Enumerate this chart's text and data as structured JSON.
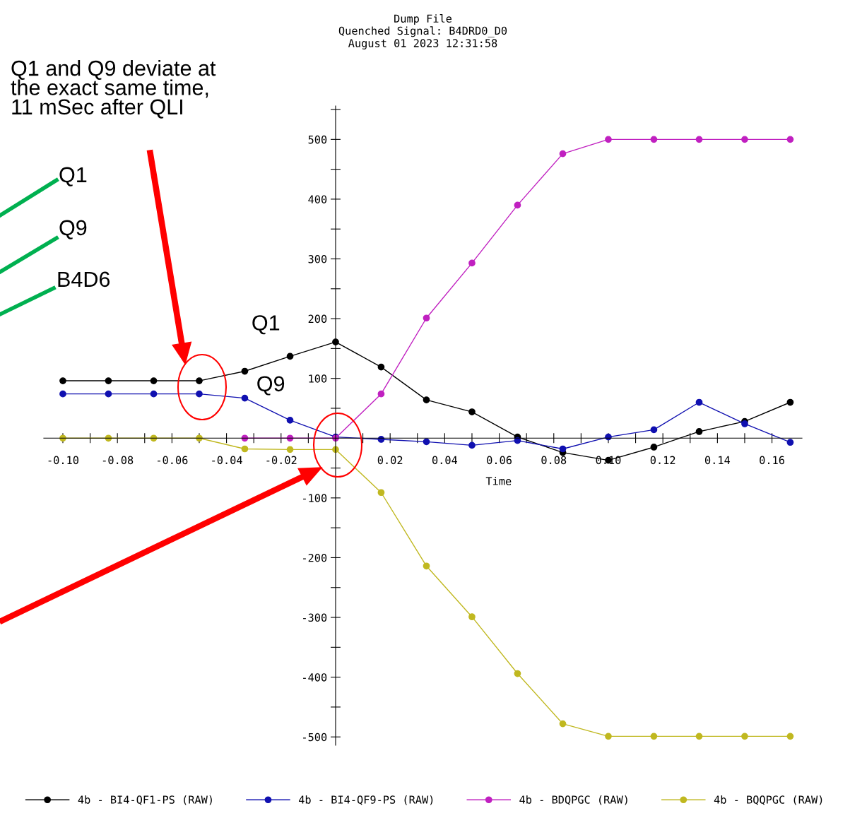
{
  "chart_data": {
    "type": "line",
    "title": "Dump File\nQuenched Signal: B4DRD0_D0\nAugust 01 2023 12:31:58",
    "xlabel": "Time",
    "x": [
      -0.1,
      -0.0833,
      -0.0667,
      -0.05,
      -0.0333,
      -0.0167,
      0,
      0.0167,
      0.0333,
      0.05,
      0.0667,
      0.0833,
      0.1,
      0.1167,
      0.1333,
      0.15,
      0.1667
    ],
    "series": [
      {
        "name": "4b - BI4-QF1-PS (RAW)",
        "color": "#000000",
        "values": [
          96,
          96,
          96,
          96,
          112,
          137,
          161,
          119,
          64,
          44,
          2,
          -24,
          -37,
          -15,
          11,
          28,
          60
        ]
      },
      {
        "name": "4b - BI4-QF9-PS (RAW)",
        "color": "#1010b0",
        "values": [
          74,
          74,
          74,
          74,
          67,
          30,
          2,
          -2,
          -6,
          -12,
          -4,
          -18,
          2,
          14,
          60,
          24,
          -7
        ]
      },
      {
        "name": "4b - BDQPGC (RAW)",
        "color": "#c020c0",
        "values": [
          null,
          null,
          null,
          null,
          0,
          0,
          0,
          74,
          201,
          293,
          390,
          476,
          500,
          500,
          500,
          500,
          500
        ]
      },
      {
        "name": "4b - BQQPGC (RAW)",
        "color": "#c0b820",
        "values": [
          0,
          0,
          0,
          0,
          -18,
          -19,
          -19,
          -91,
          -214,
          -299,
          -394,
          -478,
          -499,
          -499,
          -499,
          -499,
          -499
        ]
      }
    ],
    "xlim": [
      -0.107,
      0.171
    ],
    "ylim": [
      -514,
      556
    ],
    "xticks": [
      {
        "value": -0.1,
        "label": "-0.10"
      },
      {
        "value": -0.09,
        "label": null
      },
      {
        "value": -0.08,
        "label": "-0.08"
      },
      {
        "value": -0.07,
        "label": null
      },
      {
        "value": -0.06,
        "label": "-0.06"
      },
      {
        "value": -0.05,
        "label": null
      },
      {
        "value": -0.04,
        "label": "-0.04"
      },
      {
        "value": -0.03,
        "label": null
      },
      {
        "value": -0.02,
        "label": "-0.02"
      },
      {
        "value": -0.01,
        "label": null
      },
      {
        "value": 0.01,
        "label": null
      },
      {
        "value": 0.02,
        "label": "0.02"
      },
      {
        "value": 0.03,
        "label": null
      },
      {
        "value": 0.04,
        "label": "0.04"
      },
      {
        "value": 0.05,
        "label": null
      },
      {
        "value": 0.06,
        "label": "0.06"
      },
      {
        "value": 0.07,
        "label": null
      },
      {
        "value": 0.08,
        "label": "0.08"
      },
      {
        "value": 0.09,
        "label": null
      },
      {
        "value": 0.1,
        "label": "0.10"
      },
      {
        "value": 0.11,
        "label": null
      },
      {
        "value": 0.12,
        "label": "0.12"
      },
      {
        "value": 0.13,
        "label": null
      },
      {
        "value": 0.14,
        "label": "0.14"
      },
      {
        "value": 0.15,
        "label": null
      },
      {
        "value": 0.16,
        "label": "0.16"
      }
    ],
    "yticks": [
      {
        "value": -500,
        "label": "-500"
      },
      {
        "value": -450,
        "label": null
      },
      {
        "value": -400,
        "label": "-400"
      },
      {
        "value": -350,
        "label": null
      },
      {
        "value": -300,
        "label": "-300"
      },
      {
        "value": -250,
        "label": null
      },
      {
        "value": -200,
        "label": "-200"
      },
      {
        "value": -150,
        "label": null
      },
      {
        "value": -100,
        "label": "-100"
      },
      {
        "value": -50,
        "label": null
      },
      {
        "value": 50,
        "label": null
      },
      {
        "value": 100,
        "label": "100"
      },
      {
        "value": 150,
        "label": null
      },
      {
        "value": 200,
        "label": "200"
      },
      {
        "value": 250,
        "label": null
      },
      {
        "value": 300,
        "label": "300"
      },
      {
        "value": 350,
        "label": null
      },
      {
        "value": 400,
        "label": "400"
      },
      {
        "value": 450,
        "label": null
      },
      {
        "value": 500,
        "label": "500"
      },
      {
        "value": 550,
        "label": null
      }
    ],
    "marker": "circle",
    "line_style": "solid",
    "grid": false,
    "legend": "bottom",
    "annotations": [
      "Q1 and Q9 deviate at\nthe exact same time,\n11 mSec after QLI",
      "Q1",
      "Q9",
      "B4D6",
      {
        "text": "Q1",
        "x": -0.0167,
        "y": 137
      },
      {
        "text": "Q9",
        "x": -0.0167,
        "y": 30
      }
    ]
  }
}
